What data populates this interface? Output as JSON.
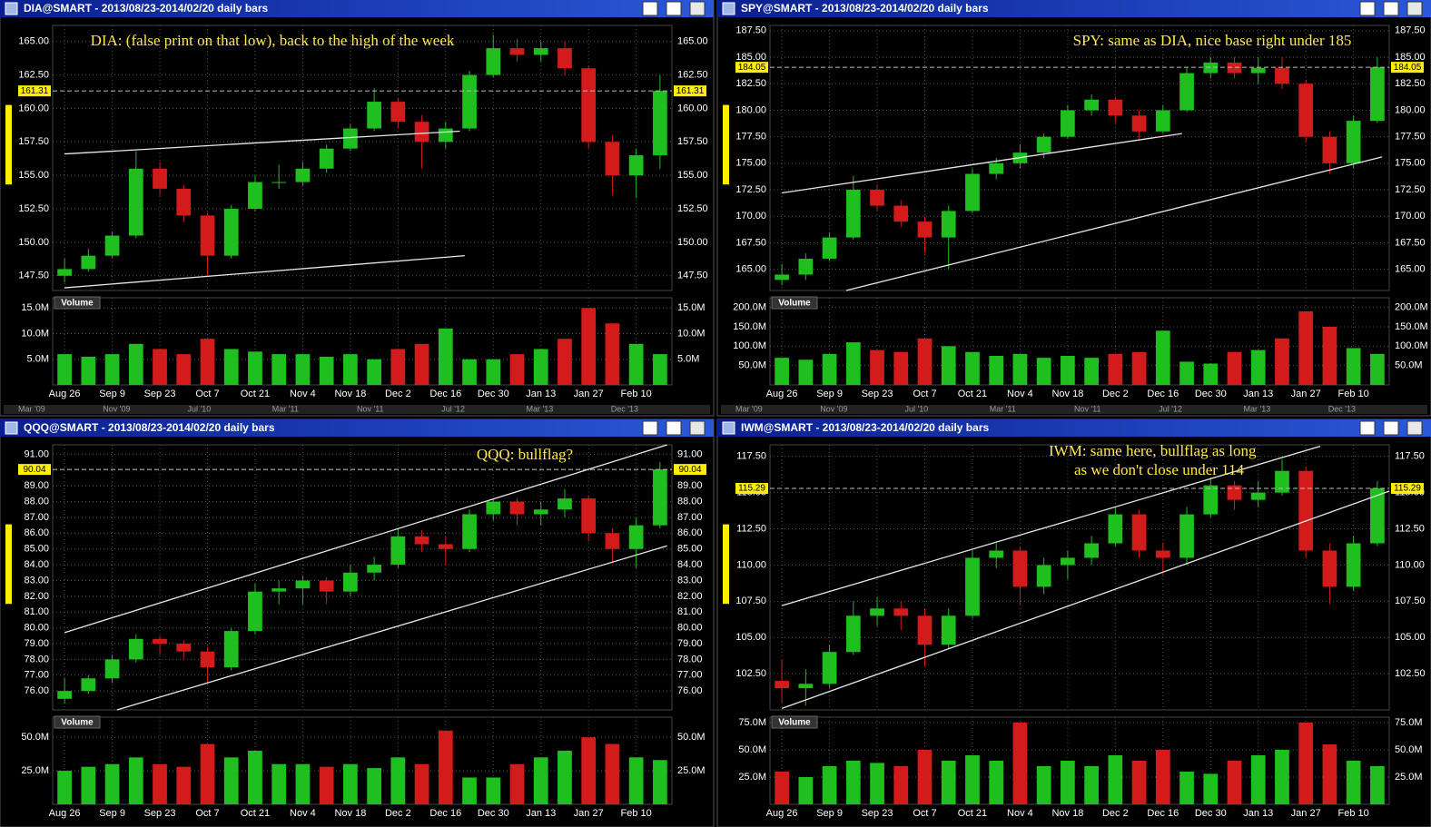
{
  "chart_data": [
    {
      "type": "candlestick",
      "title": "DIA@SMART - 2013/08/23-2014/02/20 daily bars",
      "annotation": [
        "DIA: (false print on that low), back to the high of the week"
      ],
      "volume_label": "Volume",
      "up_color": "#1fbf1f",
      "down_color": "#d41b1b",
      "grid": true,
      "categories": [
        "Aug 26",
        null,
        "Sep 9",
        null,
        "Sep 23",
        null,
        "Oct 7",
        null,
        "Oct 21",
        null,
        "Nov 4",
        null,
        "Nov 18",
        null,
        "Dec 2",
        null,
        "Dec 16",
        null,
        "Dec 30",
        null,
        "Jan 13",
        null,
        "Jan 27",
        null,
        "Feb 10",
        null
      ],
      "ohlc": [
        [
          147.5,
          148.8,
          147,
          148
        ],
        [
          148,
          149.5,
          147.8,
          149
        ],
        [
          149,
          150.8,
          148.8,
          150.5
        ],
        [
          150.5,
          156.8,
          150.3,
          155.5
        ],
        [
          155.5,
          156,
          153.5,
          154
        ],
        [
          154,
          154.3,
          151.5,
          152
        ],
        [
          152,
          152.2,
          147.5,
          149
        ],
        [
          149,
          152.8,
          148.8,
          152.5
        ],
        [
          152.5,
          155,
          152.3,
          154.5
        ],
        [
          154.5,
          155.8,
          154,
          154.5
        ],
        [
          154.5,
          156,
          154.2,
          155.5
        ],
        [
          155.5,
          157.3,
          155.2,
          157
        ],
        [
          157,
          158.8,
          156.8,
          158.5
        ],
        [
          158.5,
          161.5,
          158.3,
          160.5
        ],
        [
          160.5,
          160.8,
          158.5,
          159
        ],
        [
          159,
          159.5,
          155.5,
          157.5
        ],
        [
          157.5,
          159,
          157,
          158.5
        ],
        [
          158.5,
          162.8,
          158.3,
          162.5
        ],
        [
          162.5,
          165.5,
          162.3,
          164.5
        ],
        [
          164.5,
          165.2,
          163.5,
          164
        ],
        [
          164,
          165,
          163.5,
          164.5
        ],
        [
          164.5,
          165,
          162.5,
          163
        ],
        [
          163,
          163.2,
          157,
          157.5
        ],
        [
          157.5,
          158,
          153.5,
          155
        ],
        [
          155,
          157,
          153.3,
          156.5
        ],
        [
          156.5,
          162.5,
          155.5,
          161.31
        ]
      ],
      "volume": [
        6000000.0,
        5500000.0,
        6000000.0,
        8000000.0,
        7000000.0,
        6000000.0,
        9000000.0,
        7000000.0,
        6500000.0,
        6000000.0,
        6000000.0,
        5500000.0,
        6000000.0,
        5000000.0,
        7000000.0,
        8000000.0,
        11000000.0,
        5000000.0,
        5000000.0,
        6000000.0,
        7000000.0,
        9000000.0,
        15000000.0,
        12000000.0,
        8000000.0,
        6000000.0
      ],
      "last_price": 161.31,
      "trendlines": [
        [
          0,
          156.6,
          16.6,
          158.3
        ],
        [
          0,
          146.6,
          16.8,
          149.0
        ]
      ],
      "ylim": [
        146.4,
        166.2
      ],
      "yticks": [
        {
          "value": 147.5,
          "label": "147.50"
        },
        {
          "value": 150,
          "label": "150.00"
        },
        {
          "value": 152.5,
          "label": "152.50"
        },
        {
          "value": 155,
          "label": "155.00"
        },
        {
          "value": 157.5,
          "label": "157.50"
        },
        {
          "value": 160,
          "label": "160.00"
        },
        {
          "value": 162.5,
          "label": "162.50"
        },
        {
          "value": 165,
          "label": "165.00"
        }
      ],
      "vlim": [
        0,
        17000000.0
      ],
      "vticks": [
        {
          "value": 5000000.0,
          "label": "5.0M"
        },
        {
          "value": 10000000.0,
          "label": "10.0M"
        },
        {
          "value": 15000000.0,
          "label": "15.0M"
        }
      ],
      "navigator_labels": [
        "Mar '09",
        "Nov '09",
        "Jul '10",
        "Mar '11",
        "Nov '11",
        "Jul '12",
        "Mar '13",
        "Dec '13"
      ]
    },
    {
      "type": "candlestick",
      "title": "SPY@SMART - 2013/08/23-2014/02/20 daily bars",
      "annotation": [
        "SPY: same as DIA, nice base right under 185"
      ],
      "volume_label": "Volume",
      "up_color": "#1fbf1f",
      "down_color": "#d41b1b",
      "grid": true,
      "categories": [
        "Aug 26",
        null,
        "Sep 9",
        null,
        "Sep 23",
        null,
        "Oct 7",
        null,
        "Oct 21",
        null,
        "Nov 4",
        null,
        "Nov 18",
        null,
        "Dec 2",
        null,
        "Dec 16",
        null,
        "Dec 30",
        null,
        "Jan 13",
        null,
        "Jan 27",
        null,
        "Feb 10",
        null
      ],
      "ohlc": [
        [
          164,
          165.5,
          163.5,
          164.5
        ],
        [
          164.5,
          166.5,
          164,
          166
        ],
        [
          166,
          168.5,
          165.8,
          168
        ],
        [
          168,
          173.8,
          167.8,
          172.5
        ],
        [
          172.5,
          173,
          170.5,
          171
        ],
        [
          171,
          171.5,
          169,
          169.5
        ],
        [
          169.5,
          170,
          166.5,
          168
        ],
        [
          168,
          171,
          165,
          170.5
        ],
        [
          170.5,
          174.5,
          170.3,
          174
        ],
        [
          174,
          175.5,
          173.5,
          175
        ],
        [
          175,
          176.8,
          174.5,
          176
        ],
        [
          176,
          177.8,
          175.5,
          177.5
        ],
        [
          177.5,
          180.5,
          177.3,
          180
        ],
        [
          180,
          181.5,
          179.5,
          181
        ],
        [
          181,
          181.3,
          178.8,
          179.5
        ],
        [
          179.5,
          180,
          177.3,
          178
        ],
        [
          178,
          180.5,
          177.8,
          180
        ],
        [
          180,
          184,
          179.8,
          183.5
        ],
        [
          183.5,
          185,
          183,
          184.5
        ],
        [
          184.5,
          185,
          183,
          183.5
        ],
        [
          183.5,
          185,
          182.5,
          184
        ],
        [
          184,
          185,
          182,
          182.5
        ],
        [
          182.5,
          182.8,
          177,
          177.5
        ],
        [
          177.5,
          178,
          174,
          175
        ],
        [
          175,
          179.5,
          174.5,
          179
        ],
        [
          179,
          185,
          178.8,
          184.05
        ]
      ],
      "volume": [
        70000000.0,
        65000000.0,
        80000000.0,
        110000000.0,
        90000000.0,
        85000000.0,
        120000000.0,
        100000000.0,
        85000000.0,
        75000000.0,
        80000000.0,
        70000000.0,
        75000000.0,
        70000000.0,
        80000000.0,
        85000000.0,
        140000000.0,
        60000000.0,
        55000000.0,
        85000000.0,
        90000000.0,
        120000000.0,
        190000000.0,
        150000000.0,
        95000000.0,
        80000000.0
      ],
      "last_price": 184.05,
      "trendlines": [
        [
          0,
          172.2,
          16.8,
          177.8
        ],
        [
          2.7,
          163.0,
          25.2,
          175.6
        ]
      ],
      "ylim": [
        163.0,
        188.0
      ],
      "yticks": [
        {
          "value": 165,
          "label": "165.00"
        },
        {
          "value": 167.5,
          "label": "167.50"
        },
        {
          "value": 170,
          "label": "170.00"
        },
        {
          "value": 172.5,
          "label": "172.50"
        },
        {
          "value": 175,
          "label": "175.00"
        },
        {
          "value": 177.5,
          "label": "177.50"
        },
        {
          "value": 180,
          "label": "180.00"
        },
        {
          "value": 182.5,
          "label": "182.50"
        },
        {
          "value": 185,
          "label": "185.00"
        },
        {
          "value": 187.5,
          "label": "187.50"
        }
      ],
      "vlim": [
        0,
        225000000.0
      ],
      "vticks": [
        {
          "value": 50000000.0,
          "label": "50.0M"
        },
        {
          "value": 100000000.0,
          "label": "100.0M"
        },
        {
          "value": 150000000.0,
          "label": "150.0M"
        },
        {
          "value": 200000000.0,
          "label": "200.0M"
        }
      ],
      "navigator_labels": [
        "Mar '09",
        "Nov '09",
        "Jul '10",
        "Mar '11",
        "Nov '11",
        "Jul '12",
        "Mar '13",
        "Dec '13"
      ]
    },
    {
      "type": "candlestick",
      "title": "QQQ@SMART - 2013/08/23-2014/02/20 daily bars",
      "annotation": [
        "QQQ: bullflag?"
      ],
      "volume_label": "Volume",
      "up_color": "#1fbf1f",
      "down_color": "#d41b1b",
      "grid": true,
      "categories": [
        "Aug 26",
        null,
        "Sep 9",
        null,
        "Sep 23",
        null,
        "Oct 7",
        null,
        "Oct 21",
        null,
        "Nov 4",
        null,
        "Nov 18",
        null,
        "Dec 2",
        null,
        "Dec 16",
        null,
        "Dec 30",
        null,
        "Jan 13",
        null,
        "Jan 27",
        null,
        "Feb 10",
        null
      ],
      "ohlc": [
        [
          75.5,
          76.8,
          75.2,
          76
        ],
        [
          76,
          77,
          75.8,
          76.8
        ],
        [
          76.8,
          78.3,
          76.5,
          78
        ],
        [
          78,
          79.6,
          77.8,
          79.3
        ],
        [
          79.3,
          79.5,
          78.3,
          79
        ],
        [
          79,
          79.2,
          78,
          78.5
        ],
        [
          78.5,
          78.8,
          76.5,
          77.5
        ],
        [
          77.5,
          80,
          77.3,
          79.8
        ],
        [
          79.8,
          82.8,
          79.6,
          82.3
        ],
        [
          82.3,
          83,
          81.5,
          82.5
        ],
        [
          82.5,
          83.3,
          81.5,
          83
        ],
        [
          83,
          83.2,
          81.5,
          82.3
        ],
        [
          82.3,
          84,
          82,
          83.5
        ],
        [
          83.5,
          84.5,
          83,
          84
        ],
        [
          84,
          86.3,
          83.8,
          85.8
        ],
        [
          85.8,
          86.2,
          84.8,
          85.3
        ],
        [
          85.3,
          85.8,
          84,
          85
        ],
        [
          85,
          87.5,
          84.8,
          87.2
        ],
        [
          87.2,
          88.2,
          86.8,
          88
        ],
        [
          88,
          88.2,
          86.5,
          87.2
        ],
        [
          87.2,
          88,
          86.5,
          87.5
        ],
        [
          87.5,
          88.8,
          87,
          88.2
        ],
        [
          88.2,
          88.4,
          85.5,
          86
        ],
        [
          86,
          86.3,
          84.2,
          85
        ],
        [
          85,
          87,
          83.8,
          86.5
        ],
        [
          86.5,
          90.5,
          86.3,
          90.04
        ]
      ],
      "volume": [
        25000000.0,
        28000000.0,
        30000000.0,
        35000000.0,
        30000000.0,
        28000000.0,
        45000000.0,
        35000000.0,
        40000000.0,
        30000000.0,
        30000000.0,
        28000000.0,
        30000000.0,
        27000000.0,
        35000000.0,
        30000000.0,
        55000000.0,
        20000000.0,
        20000000.0,
        30000000.0,
        35000000.0,
        40000000.0,
        50000000.0,
        45000000.0,
        35000000.0,
        33000000.0
      ],
      "last_price": 90.04,
      "trendlines": [
        [
          0,
          79.7,
          25.3,
          91.6
        ],
        [
          2.2,
          74.8,
          25.3,
          85.2
        ]
      ],
      "ylim": [
        74.8,
        91.6
      ],
      "yticks": [
        {
          "value": 76,
          "label": "76.00"
        },
        {
          "value": 77,
          "label": "77.00"
        },
        {
          "value": 78,
          "label": "78.00"
        },
        {
          "value": 79,
          "label": "79.00"
        },
        {
          "value": 80,
          "label": "80.00"
        },
        {
          "value": 81,
          "label": "81.00"
        },
        {
          "value": 82,
          "label": "82.00"
        },
        {
          "value": 83,
          "label": "83.00"
        },
        {
          "value": 84,
          "label": "84.00"
        },
        {
          "value": 85,
          "label": "85.00"
        },
        {
          "value": 86,
          "label": "86.00"
        },
        {
          "value": 87,
          "label": "87.00"
        },
        {
          "value": 88,
          "label": "88.00"
        },
        {
          "value": 89,
          "label": "89.00"
        },
        {
          "value": 90,
          "label": "90.00"
        },
        {
          "value": 91,
          "label": "91.00"
        }
      ],
      "vlim": [
        0,
        65000000.0
      ],
      "vticks": [
        {
          "value": 25000000.0,
          "label": "25.0M"
        },
        {
          "value": 50000000.0,
          "label": "50.0M"
        }
      ]
    },
    {
      "type": "candlestick",
      "title": "IWM@SMART - 2013/08/23-2014/02/20 daily bars",
      "annotation": [
        "IWM: same here, bullflag as long",
        "as we don't close under 114"
      ],
      "volume_label": "Volume",
      "up_color": "#1fbf1f",
      "down_color": "#d41b1b",
      "grid": true,
      "categories": [
        "Aug 26",
        null,
        "Sep 9",
        null,
        "Sep 23",
        null,
        "Oct 7",
        null,
        "Oct 21",
        null,
        "Nov 4",
        null,
        "Nov 18",
        null,
        "Dec 2",
        null,
        "Dec 16",
        null,
        "Dec 30",
        null,
        "Jan 13",
        null,
        "Jan 27",
        null,
        "Feb 10",
        null
      ],
      "ohlc": [
        [
          102,
          103.5,
          100.5,
          101.5
        ],
        [
          101.5,
          102.8,
          100.3,
          101.8
        ],
        [
          101.8,
          104.5,
          101.5,
          104
        ],
        [
          104,
          107.5,
          103.8,
          106.5
        ],
        [
          106.5,
          107.8,
          105.8,
          107
        ],
        [
          107,
          107.5,
          105.5,
          106.5
        ],
        [
          106.5,
          107,
          103,
          104.5
        ],
        [
          104.5,
          107,
          104.2,
          106.5
        ],
        [
          106.5,
          111,
          106.3,
          110.5
        ],
        [
          110.5,
          111.5,
          109.8,
          111
        ],
        [
          111,
          111.3,
          107.3,
          108.5
        ],
        [
          108.5,
          110.5,
          108,
          110
        ],
        [
          110,
          111,
          109,
          110.5
        ],
        [
          110.5,
          112,
          110,
          111.5
        ],
        [
          111.5,
          114,
          111.3,
          113.5
        ],
        [
          113.5,
          113.8,
          110.5,
          111
        ],
        [
          111,
          111.5,
          109.3,
          110.5
        ],
        [
          110.5,
          114,
          110,
          113.5
        ],
        [
          113.5,
          116,
          113.3,
          115.5
        ],
        [
          115.5,
          115.8,
          113.8,
          114.5
        ],
        [
          114.5,
          115.8,
          114,
          115
        ],
        [
          115,
          117.3,
          114.8,
          116.5
        ],
        [
          116.5,
          116.8,
          110.5,
          111
        ],
        [
          111,
          111.5,
          107.3,
          108.5
        ],
        [
          108.5,
          112,
          108.2,
          111.5
        ],
        [
          111.5,
          115.8,
          111.3,
          115.29
        ]
      ],
      "volume": [
        30000000.0,
        25000000.0,
        35000000.0,
        40000000.0,
        38000000.0,
        35000000.0,
        50000000.0,
        40000000.0,
        45000000.0,
        40000000.0,
        75000000.0,
        35000000.0,
        40000000.0,
        35000000.0,
        45000000.0,
        40000000.0,
        50000000.0,
        30000000.0,
        28000000.0,
        40000000.0,
        45000000.0,
        50000000.0,
        75000000.0,
        55000000.0,
        40000000.0,
        35000000.0
      ],
      "last_price": 115.29,
      "trendlines": [
        [
          0,
          107.2,
          22.6,
          118.2
        ],
        [
          0,
          100.1,
          25.5,
          115.1
        ]
      ],
      "ylim": [
        100.0,
        118.3
      ],
      "yticks": [
        {
          "value": 102.5,
          "label": "102.50"
        },
        {
          "value": 105,
          "label": "105.00"
        },
        {
          "value": 107.5,
          "label": "107.50"
        },
        {
          "value": 110,
          "label": "110.00"
        },
        {
          "value": 112.5,
          "label": "112.50"
        },
        {
          "value": 115,
          "label": "115.00"
        },
        {
          "value": 117.5,
          "label": "117.50"
        }
      ],
      "vlim": [
        0,
        80000000.0
      ],
      "vticks": [
        {
          "value": 25000000.0,
          "label": "25.0M"
        },
        {
          "value": 50000000.0,
          "label": "50.0M"
        },
        {
          "value": 75000000.0,
          "label": "75.0M"
        }
      ]
    }
  ]
}
